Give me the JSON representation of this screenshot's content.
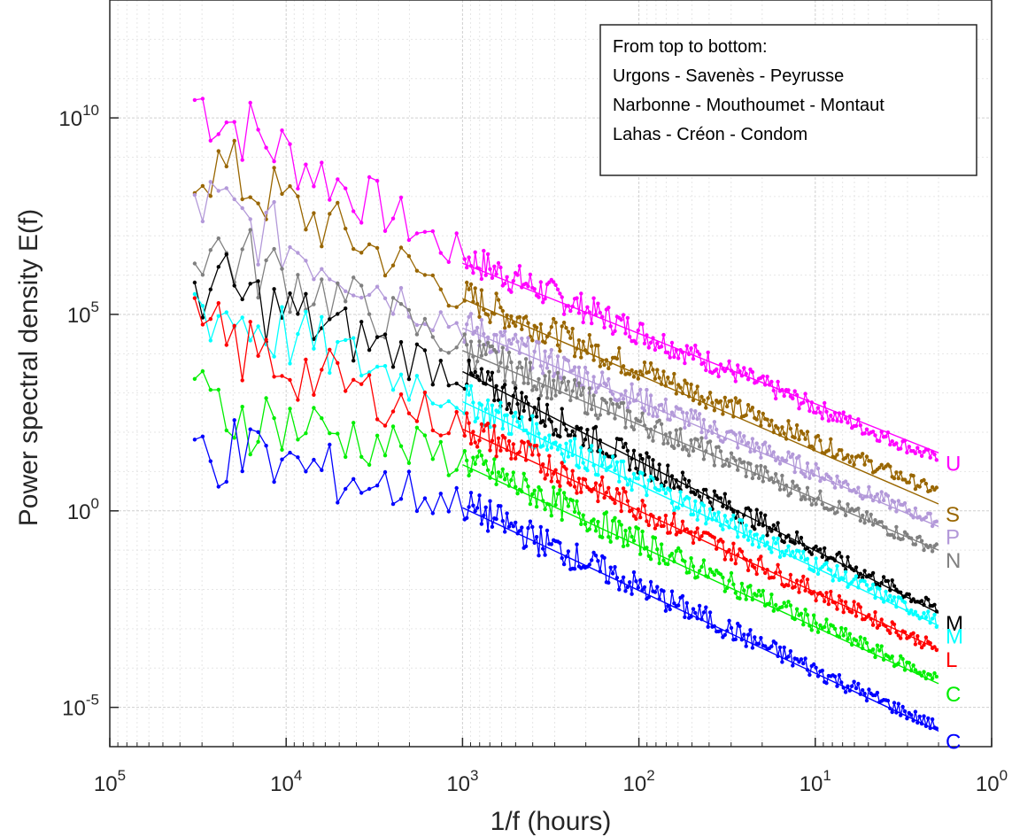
{
  "chart_data": {
    "type": "line",
    "title": "",
    "xlabel": "1/f (hours)",
    "ylabel": "Power spectral density E(f)",
    "xscale": "log",
    "yscale": "log",
    "x_reversed": true,
    "xlim": [
      100000,
      1
    ],
    "ylim": [
      1e-06,
      10000000000000
    ],
    "grid": true,
    "x_ticks": [
      {
        "value": 100000,
        "base": "10",
        "exp": "5"
      },
      {
        "value": 10000,
        "base": "10",
        "exp": "4"
      },
      {
        "value": 1000,
        "base": "10",
        "exp": "3"
      },
      {
        "value": 100,
        "base": "10",
        "exp": "2"
      },
      {
        "value": 10,
        "base": "10",
        "exp": "1"
      },
      {
        "value": 1,
        "base": "10",
        "exp": "0"
      }
    ],
    "y_ticks": [
      {
        "value": 10000000000,
        "base": "10",
        "exp": "10"
      },
      {
        "value": 100000,
        "base": "10",
        "exp": "5"
      },
      {
        "value": 1,
        "base": "10",
        "exp": "0"
      },
      {
        "value": 1e-05,
        "base": "10",
        "exp": "-5"
      }
    ],
    "legend": {
      "placement": "top-right",
      "lines": [
        "From top to bottom:",
        "Urgons - Savenès - Peyrusse",
        "Narbonne - Mouthoumet - Montaut",
        "Lahas - Créon - Condom"
      ]
    },
    "series": [
      {
        "label": "U",
        "color": "#ff00ff",
        "y_start": 30000000000,
        "y_break": 3000000,
        "y_end": 20,
        "fit_start": 2000000,
        "fit_end": 30
      },
      {
        "label": "S",
        "color": "#996600",
        "y_start": 1000000000,
        "y_break": 300000,
        "y_end": 3,
        "fit_start": 250000,
        "fit_end": 1.5
      },
      {
        "label": "P",
        "color": "#b399d9",
        "y_start": 80000000,
        "y_break": 50000,
        "y_end": 0.5,
        "fit_start": 45000,
        "fit_end": 0.4
      },
      {
        "label": "N",
        "color": "#808080",
        "y_start": 7000000,
        "y_break": 15000,
        "y_end": 0.1,
        "fit_start": 12000,
        "fit_end": 0.1
      },
      {
        "label": "M",
        "color": "#000000",
        "y_start": 700000,
        "y_break": 3000,
        "y_end": 0.003,
        "fit_start": 3500,
        "fit_end": 0.0025
      },
      {
        "label": "M",
        "color": "#00ffff",
        "y_start": 200000,
        "y_break": 700,
        "y_end": 0.0015,
        "fit_start": 600,
        "fit_end": 0.0012
      },
      {
        "label": "L",
        "color": "#ff0000",
        "y_start": 30000,
        "y_break": 150,
        "y_end": 0.0003,
        "fit_start": 120,
        "fit_end": 0.0003
      },
      {
        "label": "C",
        "color": "#00ee00",
        "y_start": 500,
        "y_break": 20,
        "y_end": 5e-05,
        "fit_start": 15,
        "fit_end": 4e-05
      },
      {
        "label": "C",
        "color": "#0000ff",
        "y_start": 50,
        "y_break": 1.5,
        "y_end": 3e-06,
        "fit_start": 1.2,
        "fit_end": 2.5e-06
      }
    ]
  }
}
